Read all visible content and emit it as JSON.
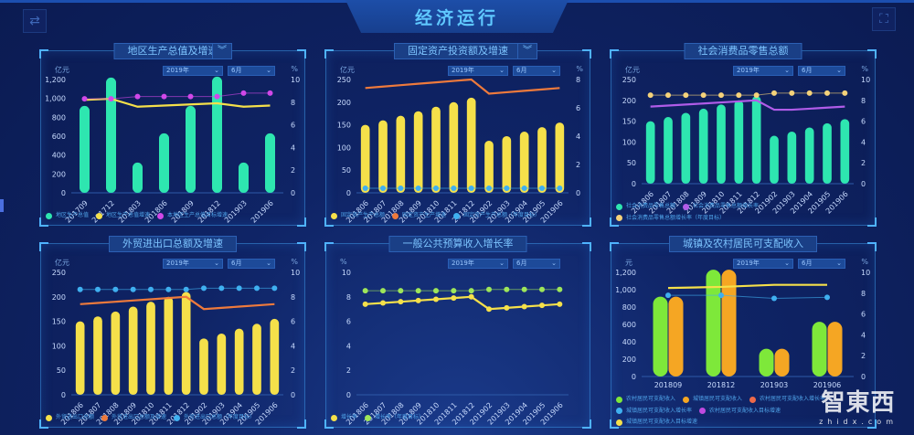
{
  "header": {
    "title": "经济运行",
    "left_icon": "swap-icon",
    "right_icon": "fullscreen-icon"
  },
  "panels": [
    {
      "title": "地区生产总值及增速",
      "has_expand": true,
      "year": "2019年",
      "month": "6月",
      "left_unit": "亿元",
      "right_unit": "%",
      "legend": [
        {
          "label": "地区生产总值",
          "color": "#2ee6b0"
        },
        {
          "label": "地区生产总值增速",
          "color": "#f5e04a"
        },
        {
          "label": "本地区生产总值目标增速",
          "color": "#d048e8"
        }
      ]
    },
    {
      "title": "固定资产投资额及增速",
      "has_expand": true,
      "year": "2019年",
      "month": "6月",
      "left_unit": "亿元",
      "right_unit": "%",
      "legend": [
        {
          "label": "固定资产生产总额",
          "color": "#f5e04a"
        },
        {
          "label": "固定资产生产增速",
          "color": "#ee7a3c"
        },
        {
          "label": "固定资产生产总额（年度目标）",
          "color": "#3fb0f0"
        }
      ]
    },
    {
      "title": "社会消费品零售总额",
      "has_expand": false,
      "year": "2019年",
      "month": "6月",
      "left_unit": "亿元",
      "right_unit": "%",
      "legend": [
        {
          "label": "社会消费品零售总额",
          "color": "#2ee6b0"
        },
        {
          "label": "社会消费品零售总额增长率",
          "color": "#b05ce8"
        },
        {
          "label": "社会消费品零售总额增长率（年度目标）",
          "color": "#f5d27a"
        }
      ]
    },
    {
      "title": "外贸进出口总额及增速",
      "has_expand": false,
      "year": "2019年",
      "month": "6月",
      "left_unit": "亿元",
      "right_unit": "%",
      "legend": [
        {
          "label": "外贸进出口总额",
          "color": "#f5e04a"
        },
        {
          "label": "外贸进出口总额及增速",
          "color": "#ee7a3c"
        },
        {
          "label": "外贸进出口总额（年度目标）",
          "color": "#3fb0f0"
        }
      ]
    },
    {
      "title": "一般公共预算收入增长率",
      "has_expand": false,
      "year": "2019年",
      "month": "6月",
      "left_unit": "%",
      "right_unit": "",
      "legend": [
        {
          "label": "增长率",
          "color": "#f5e04a"
        },
        {
          "label": "增长率（年度目标）",
          "color": "#9ee65a"
        }
      ]
    },
    {
      "title": "城镇及农村居民可支配收入",
      "has_expand": false,
      "year": "2019年",
      "month": "6月",
      "left_unit": "元",
      "right_unit": "%",
      "legend": [
        {
          "label": "农村居民可支配收入",
          "color": "#7ee83a"
        },
        {
          "label": "城镇居民可支配收入",
          "color": "#f5a623"
        },
        {
          "label": "农村居民可支配收入增长率",
          "color": "#ee6a4a"
        },
        {
          "label": "城镇居民可支配收入增长率",
          "color": "#3fb0f0"
        },
        {
          "label": "农村居民可支配收入目标增速",
          "color": "#c04ae0"
        },
        {
          "label": "城镇居民可支配收入目标增速",
          "color": "#f5e04a"
        }
      ]
    }
  ],
  "watermark": {
    "main": "智東西",
    "sub": "zhidx.com"
  },
  "chart_data": [
    {
      "type": "bar",
      "title": "地区生产总值及增速",
      "categories": [
        "201709",
        "201712",
        "201803",
        "201806",
        "201809",
        "201812",
        "201903",
        "201906"
      ],
      "ylabel": "亿元",
      "y2label": "%",
      "ylim": [
        0,
        1200
      ],
      "y2lim": [
        0,
        10
      ],
      "yticks": [
        0,
        200,
        400,
        600,
        800,
        1000,
        1200
      ],
      "y2ticks": [
        0,
        2,
        4,
        6,
        8,
        10
      ],
      "series": [
        {
          "name": "地区生产总值",
          "type": "bar",
          "axis": "left",
          "color": "#2ee6b0",
          "values": [
            920,
            1220,
            320,
            630,
            920,
            1230,
            320,
            630
          ]
        },
        {
          "name": "地区生产总值增速",
          "type": "line",
          "axis": "right",
          "color": "#f5e04a",
          "values": [
            8.2,
            8.3,
            7.6,
            7.7,
            7.8,
            7.9,
            7.6,
            7.7
          ]
        },
        {
          "name": "本地区生产总值目标增速",
          "type": "line",
          "axis": "right",
          "color": "#d048e8",
          "values": [
            8.3,
            8.3,
            8.5,
            8.5,
            8.5,
            8.5,
            8.8,
            8.8
          ]
        }
      ]
    },
    {
      "type": "bar",
      "title": "固定资产投资额及增速",
      "categories": [
        "201806",
        "201807",
        "201808",
        "201809",
        "201810",
        "201811",
        "201812",
        "201902",
        "201903",
        "201904",
        "201905",
        "201906"
      ],
      "ylabel": "亿元",
      "y2label": "%",
      "ylim": [
        0,
        250
      ],
      "y2lim": [
        0,
        8
      ],
      "yticks": [
        0,
        50,
        100,
        150,
        200,
        250
      ],
      "y2ticks": [
        0,
        2,
        4,
        6,
        8
      ],
      "series": [
        {
          "name": "固定资产生产总额",
          "type": "bar",
          "axis": "left",
          "color": "#f5e04a",
          "values": [
            150,
            160,
            170,
            180,
            190,
            200,
            210,
            115,
            125,
            135,
            145,
            155
          ]
        },
        {
          "name": "固定资产生产增速",
          "type": "line",
          "axis": "right",
          "color": "#ee7a3c",
          "values": [
            7.4,
            7.5,
            7.6,
            7.7,
            7.8,
            7.9,
            8.0,
            7.0,
            7.1,
            7.2,
            7.3,
            7.4
          ]
        },
        {
          "name": "固定资产生产总额（年度目标）",
          "type": "line",
          "axis": "left",
          "color": "#3fb0f0",
          "values": [
            10,
            10,
            10,
            10,
            10,
            10,
            10,
            10,
            10,
            10,
            10,
            10
          ]
        }
      ]
    },
    {
      "type": "bar",
      "title": "社会消费品零售总额",
      "categories": [
        "201806",
        "201807",
        "201808",
        "201809",
        "201810",
        "201811",
        "201812",
        "201902",
        "201903",
        "201904",
        "201905",
        "201906"
      ],
      "ylabel": "亿元",
      "y2label": "%",
      "ylim": [
        0,
        250
      ],
      "y2lim": [
        0,
        10
      ],
      "yticks": [
        0,
        50,
        100,
        150,
        200,
        250
      ],
      "y2ticks": [
        0,
        2,
        4,
        6,
        8,
        10
      ],
      "series": [
        {
          "name": "社会消费品零售总额",
          "type": "bar",
          "axis": "left",
          "color": "#2ee6b0",
          "values": [
            150,
            160,
            170,
            180,
            190,
            200,
            210,
            115,
            125,
            135,
            145,
            155
          ]
        },
        {
          "name": "社会消费品零售总额增长率",
          "type": "line",
          "axis": "right",
          "color": "#b05ce8",
          "values": [
            7.4,
            7.5,
            7.6,
            7.7,
            7.8,
            7.9,
            8.0,
            7.1,
            7.1,
            7.2,
            7.3,
            7.4
          ]
        },
        {
          "name": "社会消费品零售总额增长率（年度目标）",
          "type": "line",
          "axis": "right",
          "color": "#f5d27a",
          "values": [
            8.5,
            8.5,
            8.5,
            8.5,
            8.5,
            8.5,
            8.5,
            8.7,
            8.7,
            8.7,
            8.7,
            8.7
          ]
        }
      ]
    },
    {
      "type": "bar",
      "title": "外贸进出口总额及增速",
      "categories": [
        "201806",
        "201807",
        "201808",
        "201809",
        "201810",
        "201811",
        "201812",
        "201902",
        "201903",
        "201904",
        "201905",
        "201906"
      ],
      "ylabel": "亿元",
      "y2label": "%",
      "ylim": [
        0,
        250
      ],
      "y2lim": [
        0,
        10
      ],
      "yticks": [
        0,
        50,
        100,
        150,
        200,
        250
      ],
      "y2ticks": [
        0,
        2,
        4,
        6,
        8,
        10
      ],
      "series": [
        {
          "name": "外贸进出口总额",
          "type": "bar",
          "axis": "left",
          "color": "#f5e04a",
          "values": [
            150,
            160,
            170,
            180,
            190,
            200,
            210,
            115,
            125,
            135,
            145,
            155
          ]
        },
        {
          "name": "外贸进出口总额及增速",
          "type": "line",
          "axis": "right",
          "color": "#ee7a3c",
          "values": [
            7.4,
            7.5,
            7.6,
            7.7,
            7.8,
            7.9,
            8.0,
            7.0,
            7.1,
            7.2,
            7.3,
            7.4
          ]
        },
        {
          "name": "外贸进出口总额（年度目标）",
          "type": "line",
          "axis": "right",
          "color": "#3fb0f0",
          "values": [
            8.6,
            8.6,
            8.6,
            8.6,
            8.6,
            8.6,
            8.6,
            8.7,
            8.7,
            8.7,
            8.7,
            8.7
          ]
        }
      ]
    },
    {
      "type": "line",
      "title": "一般公共预算收入增长率",
      "categories": [
        "201806",
        "201807",
        "201808",
        "201809",
        "201810",
        "201811",
        "201812",
        "201902",
        "201903",
        "201904",
        "201905",
        "201906"
      ],
      "ylabel": "%",
      "ylim": [
        0,
        10
      ],
      "yticks": [
        0,
        2,
        4,
        6,
        8,
        10
      ],
      "series": [
        {
          "name": "增长率",
          "type": "line",
          "color": "#f5e04a",
          "values": [
            7.4,
            7.5,
            7.6,
            7.7,
            7.8,
            7.9,
            8.0,
            7.0,
            7.1,
            7.2,
            7.3,
            7.4
          ]
        },
        {
          "name": "增长率（年度目标）",
          "type": "line",
          "color": "#9ee65a",
          "values": [
            8.5,
            8.5,
            8.5,
            8.5,
            8.5,
            8.5,
            8.5,
            8.6,
            8.6,
            8.6,
            8.6,
            8.6
          ]
        }
      ]
    },
    {
      "type": "bar",
      "title": "城镇及农村居民可支配收入",
      "categories": [
        "201809",
        "201812",
        "201903",
        "201906"
      ],
      "ylabel": "元",
      "y2label": "%",
      "ylim": [
        0,
        1200
      ],
      "y2lim": [
        0,
        10
      ],
      "yticks": [
        0,
        200,
        400,
        600,
        800,
        1000,
        1200
      ],
      "y2ticks": [
        0,
        2,
        4,
        6,
        8,
        10
      ],
      "series": [
        {
          "name": "农村居民可支配收入",
          "type": "bar",
          "axis": "left",
          "color": "#7ee83a",
          "values": [
            920,
            1230,
            320,
            630
          ]
        },
        {
          "name": "城镇居民可支配收入",
          "type": "bar",
          "axis": "left",
          "color": "#f5a623",
          "values": [
            920,
            1230,
            320,
            630
          ]
        },
        {
          "name": "城镇居民可支配收入增长率",
          "type": "line",
          "axis": "right",
          "color": "#3fb0f0",
          "values": [
            7.8,
            7.8,
            7.5,
            7.6
          ]
        },
        {
          "name": "城镇居民可支配收入目标增速",
          "type": "line",
          "axis": "right",
          "color": "#f5e04a",
          "values": [
            8.5,
            8.6,
            8.8,
            8.8
          ]
        }
      ]
    }
  ]
}
